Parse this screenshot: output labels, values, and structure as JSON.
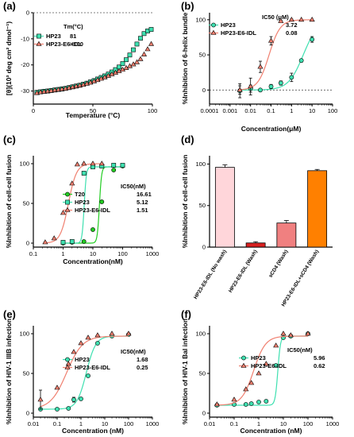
{
  "panels": {
    "a": {
      "label": "(a)",
      "xlabel": "Temperature (°C)",
      "ylabel": "[θ](10³ deg cm² dmol⁻¹)",
      "legend_header": "Tm(°C)"
    },
    "b": {
      "label": "(b)",
      "xlabel": "Concentration(μM)",
      "ylabel": "%Inhibition of 6-helix bundle",
      "legend_header": "IC50 (μM)"
    },
    "c": {
      "label": "(c)",
      "xlabel": "Concentration(nM)",
      "ylabel": "%Inhibition of cell-cell fusion",
      "legend_header": "IC50(nM)"
    },
    "d": {
      "label": "(d)",
      "xlabel": "",
      "ylabel": "%Inhibition of cell-cell fusion",
      "legend_header": ""
    },
    "e": {
      "label": "(e)",
      "xlabel": "Concentration (nM)",
      "ylabel": "%Inhibition of HIV-1 IIIB infection",
      "legend_header": "IC50(nM)"
    },
    "f": {
      "label": "(f)",
      "xlabel": "Concentration (nM)",
      "ylabel": "%Inhibition of HIV-1 Bal infection",
      "legend_header": "IC50(nM)"
    }
  },
  "colors": {
    "hp23": "#3ee0b0",
    "idl": "#f08070",
    "t20": "#22cc22",
    "bar1": "#ffd6da",
    "bar2": "#d82020",
    "bar3": "#f08080",
    "bar4": "#ff8000"
  },
  "chart_data": [
    {
      "id": "a",
      "type": "scatter",
      "xlabel": "Temperature (°C)",
      "ylabel": "[θ](10³ deg cm² dmol⁻¹)",
      "xlim": [
        0,
        100
      ],
      "ylim": [
        -35,
        0
      ],
      "xticks": [
        0,
        50,
        100
      ],
      "yticks": [
        -30,
        -20,
        -10,
        0
      ],
      "series": [
        {
          "name": "HP23",
          "tm": "81",
          "marker": "square",
          "color": "#3ee0b0",
          "x": [
            3,
            6,
            9,
            12,
            15,
            18,
            21,
            24,
            27,
            30,
            33,
            36,
            39,
            42,
            45,
            48,
            51,
            54,
            57,
            60,
            63,
            66,
            69,
            72,
            75,
            78,
            81,
            84,
            87,
            90,
            93,
            96,
            99
          ],
          "y": [
            -30.5,
            -30.3,
            -30.1,
            -30,
            -29.8,
            -29.6,
            -29.4,
            -29.2,
            -29,
            -28.7,
            -28.4,
            -28.1,
            -27.8,
            -27.4,
            -27,
            -26.5,
            -26,
            -25.4,
            -24.8,
            -24.2,
            -23.5,
            -22.7,
            -21.8,
            -20.8,
            -19.5,
            -18,
            -16.2,
            -14.2,
            -12,
            -9.8,
            -8,
            -7,
            -6.4
          ]
        },
        {
          "name": "HP23-E6-IDL",
          "tm": ">100",
          "marker": "triangle",
          "color": "#f08070",
          "x": [
            3,
            6,
            9,
            12,
            15,
            18,
            21,
            24,
            27,
            30,
            33,
            36,
            39,
            42,
            45,
            48,
            51,
            54,
            57,
            60,
            63,
            66,
            69,
            72,
            75,
            78,
            81,
            84,
            87,
            90,
            93,
            96,
            99
          ],
          "y": [
            -30.8,
            -30.5,
            -30.3,
            -30.1,
            -29.9,
            -29.7,
            -29.5,
            -29.3,
            -29.1,
            -28.8,
            -28.5,
            -28.2,
            -27.9,
            -27.6,
            -27.2,
            -26.8,
            -26.3,
            -25.8,
            -25.3,
            -24.8,
            -24.2,
            -23.6,
            -23,
            -22.4,
            -21.8,
            -21.2,
            -20.5,
            -19.8,
            -19,
            -17.8,
            -16,
            -14,
            -12
          ]
        }
      ]
    },
    {
      "id": "b",
      "type": "scatter",
      "xlabel": "Concentration(μM)",
      "ylabel": "%Inhibition of 6-helix bundle",
      "xscale": "log",
      "xlim": [
        0.0001,
        100
      ],
      "ylim": [
        -20,
        110
      ],
      "xticks": [
        0.0001,
        0.001,
        0.01,
        0.1,
        1,
        10,
        100
      ],
      "xticklabels": [
        "0.0001",
        "0.001",
        "0.01",
        "0.1",
        "1",
        "10",
        "100"
      ],
      "yticks": [
        0,
        50,
        100
      ],
      "series": [
        {
          "name": "HP23",
          "ic50": "3.72",
          "marker": "circle",
          "color": "#3ee0b0",
          "x": [
            0.003,
            0.01,
            0.03,
            0.1,
            0.3,
            1,
            3,
            10
          ],
          "y": [
            -1,
            2,
            0,
            5,
            10,
            18,
            42,
            72
          ],
          "err": [
            10,
            5,
            0,
            3,
            3,
            6,
            2,
            4
          ],
          "fit_ic50": 3.72,
          "hill": 1.2,
          "top": 100
        },
        {
          "name": "HP23-E6-IDL",
          "ic50": "0.08",
          "marker": "triangle",
          "color": "#f08070",
          "x": [
            0.003,
            0.01,
            0.03,
            0.1,
            0.3,
            1,
            3,
            10
          ],
          "y": [
            0,
            5,
            33,
            70,
            98,
            100,
            100,
            100
          ],
          "err": [
            6,
            12,
            8,
            6,
            1,
            1,
            0,
            0
          ],
          "fit_ic50": 0.08,
          "hill": 1.6,
          "top": 100
        }
      ]
    },
    {
      "id": "c",
      "type": "scatter",
      "xlabel": "Concentration(nM)",
      "ylabel": "%Inhibition of cell-cell fusion",
      "xscale": "log",
      "xlim": [
        0.1,
        1000
      ],
      "ylim": [
        -5,
        110
      ],
      "xticks": [
        0.1,
        1,
        10,
        100,
        1000
      ],
      "xticklabels": [
        "0.1",
        "1",
        "10",
        "100",
        "1000"
      ],
      "yticks": [
        0,
        50,
        100
      ],
      "series": [
        {
          "name": "T20",
          "ic50": "16.61",
          "marker": "circle",
          "color": "#22cc22",
          "x": [
            1,
            2,
            5,
            10,
            20,
            50,
            100
          ],
          "y": [
            0,
            1,
            2,
            17,
            52,
            92,
            97
          ],
          "fit_ic50": 16.61,
          "hill": 12,
          "top": 96
        },
        {
          "name": "HP23",
          "ic50": "5.12",
          "marker": "square",
          "color": "#3ee0b0",
          "x": [
            1,
            2,
            5,
            10,
            20,
            50,
            100
          ],
          "y": [
            1,
            2,
            88,
            96,
            97,
            98,
            98
          ],
          "fit_ic50": 5.12,
          "hill": 12,
          "top": 96
        },
        {
          "name": "HP23-E6-IDL",
          "ic50": "1.51",
          "marker": "triangle",
          "color": "#f08070",
          "x": [
            0.25,
            0.5,
            1,
            2,
            3,
            5,
            10,
            20
          ],
          "y": [
            1,
            6,
            38,
            75,
            99,
            100,
            100,
            100
          ],
          "fit_ic50": 1.51,
          "hill": 3.2,
          "top": 100
        }
      ]
    },
    {
      "id": "d",
      "type": "bar",
      "ylabel": "%Inhibition of cell-cell fusion",
      "ylim": [
        0,
        110
      ],
      "yticks": [
        0,
        50,
        100
      ],
      "categories": [
        "HP23-E6-IDL (No wash)",
        "HP23-E6-IDL (Wash)",
        "sCD4 (Wash)",
        "HP23-E6-IDL+sCD4 (Wash)"
      ],
      "values": [
        96,
        5,
        29,
        92
      ],
      "errors": [
        3,
        1.5,
        3,
        1.5
      ],
      "colors": [
        "#ffd6da",
        "#d82020",
        "#f08080",
        "#ff8000"
      ]
    },
    {
      "id": "e",
      "type": "scatter",
      "xlabel": "Concentration (nM)",
      "ylabel": "%Inhibition of HIV-1 IIIB infection",
      "xscale": "log",
      "xlim": [
        0.01,
        1000
      ],
      "ylim": [
        -5,
        110
      ],
      "xticks": [
        0.01,
        0.1,
        1,
        10,
        100,
        1000
      ],
      "xticklabels": [
        "0.01",
        "0.1",
        "1",
        "10",
        "100",
        "1000"
      ],
      "yticks": [
        0,
        50,
        100
      ],
      "series": [
        {
          "name": "HP23",
          "ic50": "1.68",
          "marker": "circle",
          "color": "#3ee0b0",
          "x": [
            0.02,
            0.1,
            0.3,
            0.5,
            1,
            2,
            5,
            20,
            100
          ],
          "y": [
            5,
            5,
            6,
            17,
            18,
            47,
            88,
            97,
            99
          ],
          "err": [
            0,
            0,
            0,
            3,
            0,
            0,
            0,
            0,
            0
          ],
          "fit_ic50": 1.68,
          "hill": 2.2,
          "top": 97,
          "bottom": 5
        },
        {
          "name": "HP23-E6-IDL",
          "ic50": "0.25",
          "marker": "triangle",
          "color": "#f08070",
          "x": [
            0.02,
            0.1,
            0.3,
            0.5,
            1,
            2,
            5,
            20,
            100
          ],
          "y": [
            17,
            32,
            62,
            77,
            88,
            95,
            98,
            100,
            100
          ],
          "err": [
            12,
            0,
            0,
            0,
            0,
            0,
            0,
            0,
            0
          ],
          "fit_ic50": 0.25,
          "hill": 1.3,
          "top": 97,
          "bottom": 5
        }
      ]
    },
    {
      "id": "f",
      "type": "scatter",
      "xlabel": "Concentration (nM)",
      "ylabel": "%Inhibition of HIV-1 Bal infection",
      "xscale": "log",
      "xlim": [
        0.01,
        1000
      ],
      "ylim": [
        -5,
        110
      ],
      "xticks": [
        0.01,
        0.1,
        1,
        10,
        100,
        1000
      ],
      "xticklabels": [
        "0.01",
        "0.1",
        "1",
        "10",
        "100",
        "1000"
      ],
      "yticks": [
        0,
        50,
        100
      ],
      "series": [
        {
          "name": "HP23",
          "ic50": "5.96",
          "marker": "circle",
          "color": "#3ee0b0",
          "x": [
            0.02,
            0.1,
            0.3,
            0.5,
            1,
            2,
            5,
            10,
            20,
            100
          ],
          "y": [
            10,
            11,
            11,
            12,
            14,
            15,
            60,
            95,
            97,
            100
          ],
          "fit_ic50": 5.96,
          "hill": 8,
          "top": 97,
          "bottom": 10
        },
        {
          "name": "HP23-E6-IDL",
          "ic50": "0.62",
          "marker": "triangle",
          "color": "#f08070",
          "x": [
            0.02,
            0.1,
            0.3,
            0.5,
            1,
            2,
            5,
            10,
            20,
            100
          ],
          "y": [
            11,
            17,
            30,
            38,
            50,
            62,
            85,
            100,
            98,
            100
          ],
          "fit_ic50": 0.62,
          "hill": 1.8,
          "top": 97,
          "bottom": 10
        }
      ]
    }
  ]
}
